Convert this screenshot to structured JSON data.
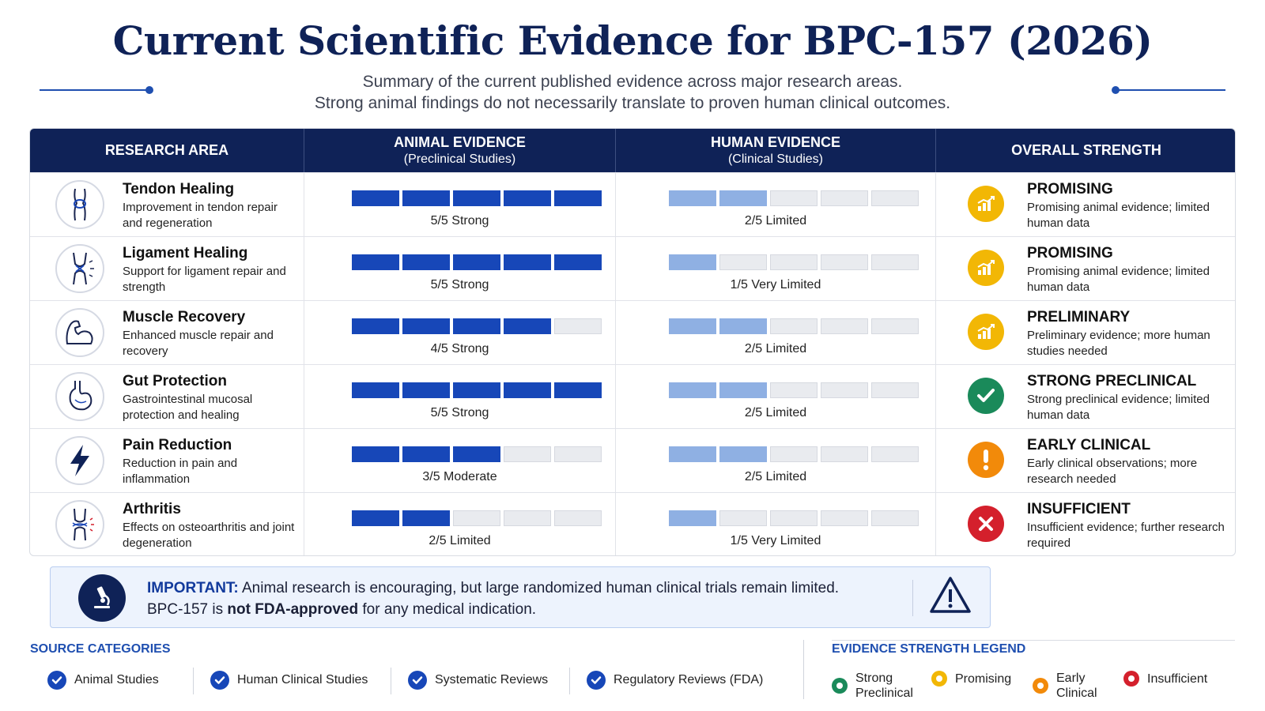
{
  "title": "Current Scientific Evidence for BPC-157 (2026)",
  "subtitle": {
    "line1": "Summary of the current published evidence across major research areas.",
    "line2": "Strong animal findings do not necessarily translate to proven human clinical outcomes."
  },
  "table": {
    "headers": {
      "area": "RESEARCH AREA",
      "animal": "ANIMAL EVIDENCE",
      "animal_sub": "(Preclinical Studies)",
      "human": "HUMAN EVIDENCE",
      "human_sub": "(Clinical Studies)",
      "overall": "OVERALL STRENGTH"
    },
    "rows": [
      {
        "name": "Tendon Healing",
        "desc": "Improvement in tendon repair and regeneration",
        "icon": "tendon-icon",
        "animal_score": 5,
        "animal_label": "5/5 Strong",
        "human_score": 2,
        "human_label": "2/5 Limited",
        "strength": "PROMISING",
        "strength_desc": "Promising animal evidence; limited human data",
        "strength_icon": "chart-icon",
        "strength_color": "#f2b705"
      },
      {
        "name": "Ligament Healing",
        "desc": "Support for ligament repair and strength",
        "icon": "ligament-icon",
        "animal_score": 5,
        "animal_label": "5/5 Strong",
        "human_score": 1,
        "human_label": "1/5 Very Limited",
        "strength": "PROMISING",
        "strength_desc": "Promising animal evidence; limited human data",
        "strength_icon": "chart-icon",
        "strength_color": "#f2b705"
      },
      {
        "name": "Muscle Recovery",
        "desc": "Enhanced muscle repair and recovery",
        "icon": "muscle-icon",
        "animal_score": 4,
        "animal_label": "4/5 Strong",
        "human_score": 2,
        "human_label": "2/5 Limited",
        "strength": "PRELIMINARY",
        "strength_desc": "Preliminary evidence; more human studies needed",
        "strength_icon": "chart-icon",
        "strength_color": "#f2b705"
      },
      {
        "name": "Gut Protection",
        "desc": "Gastrointestinal mucosal protection and healing",
        "icon": "stomach-icon",
        "animal_score": 5,
        "animal_label": "5/5 Strong",
        "human_score": 2,
        "human_label": "2/5 Limited",
        "strength": "STRONG PRECLINICAL",
        "strength_desc": "Strong preclinical evidence; limited human data",
        "strength_icon": "check-icon",
        "strength_color": "#1a8a5a"
      },
      {
        "name": "Pain Reduction",
        "desc": "Reduction in pain and inflammation",
        "icon": "lightning-icon",
        "animal_score": 3,
        "animal_label": "3/5 Moderate",
        "human_score": 2,
        "human_label": "2/5 Limited",
        "strength": "EARLY CLINICAL",
        "strength_desc": "Early clinical observations; more research needed",
        "strength_icon": "exclamation-icon",
        "strength_color": "#f28a0a"
      },
      {
        "name": "Arthritis",
        "desc": "Effects on osteoarthritis and joint degeneration",
        "icon": "joint-icon",
        "animal_score": 2,
        "animal_label": "2/5 Limited",
        "human_score": 1,
        "human_label": "1/5 Very Limited",
        "strength": "INSUFFICIENT",
        "strength_desc": "Insufficient evidence; further research required",
        "strength_icon": "x-icon",
        "strength_color": "#d4202c"
      }
    ]
  },
  "notice": {
    "important": "IMPORTANT:",
    "line1": "Animal research is encouraging, but large randomized human clinical trials remain limited.",
    "line2_pre": "BPC-157 is",
    "line2_bold": "not FDA-approved",
    "line2_post": "for any medical indication."
  },
  "sources": {
    "heading": "SOURCE CATEGORIES",
    "items": [
      "Animal Studies",
      "Human Clinical Studies",
      "Systematic Reviews",
      "Regulatory Reviews (FDA)"
    ]
  },
  "legend": {
    "heading": "EVIDENCE STRENGTH LEGEND",
    "items": [
      {
        "label": "Strong Preclinical",
        "color": "#1a8a5a"
      },
      {
        "label": "Promising",
        "color": "#f2b705"
      },
      {
        "label": "Early Clinical",
        "color": "#f28a0a"
      },
      {
        "label": "Insufficient",
        "color": "#d4202c"
      }
    ]
  },
  "colors": {
    "navy": "#0f2257",
    "animal_bar": "#1747b8",
    "human_bar": "#8fb0e3",
    "empty_bar": "#e9ebef"
  }
}
